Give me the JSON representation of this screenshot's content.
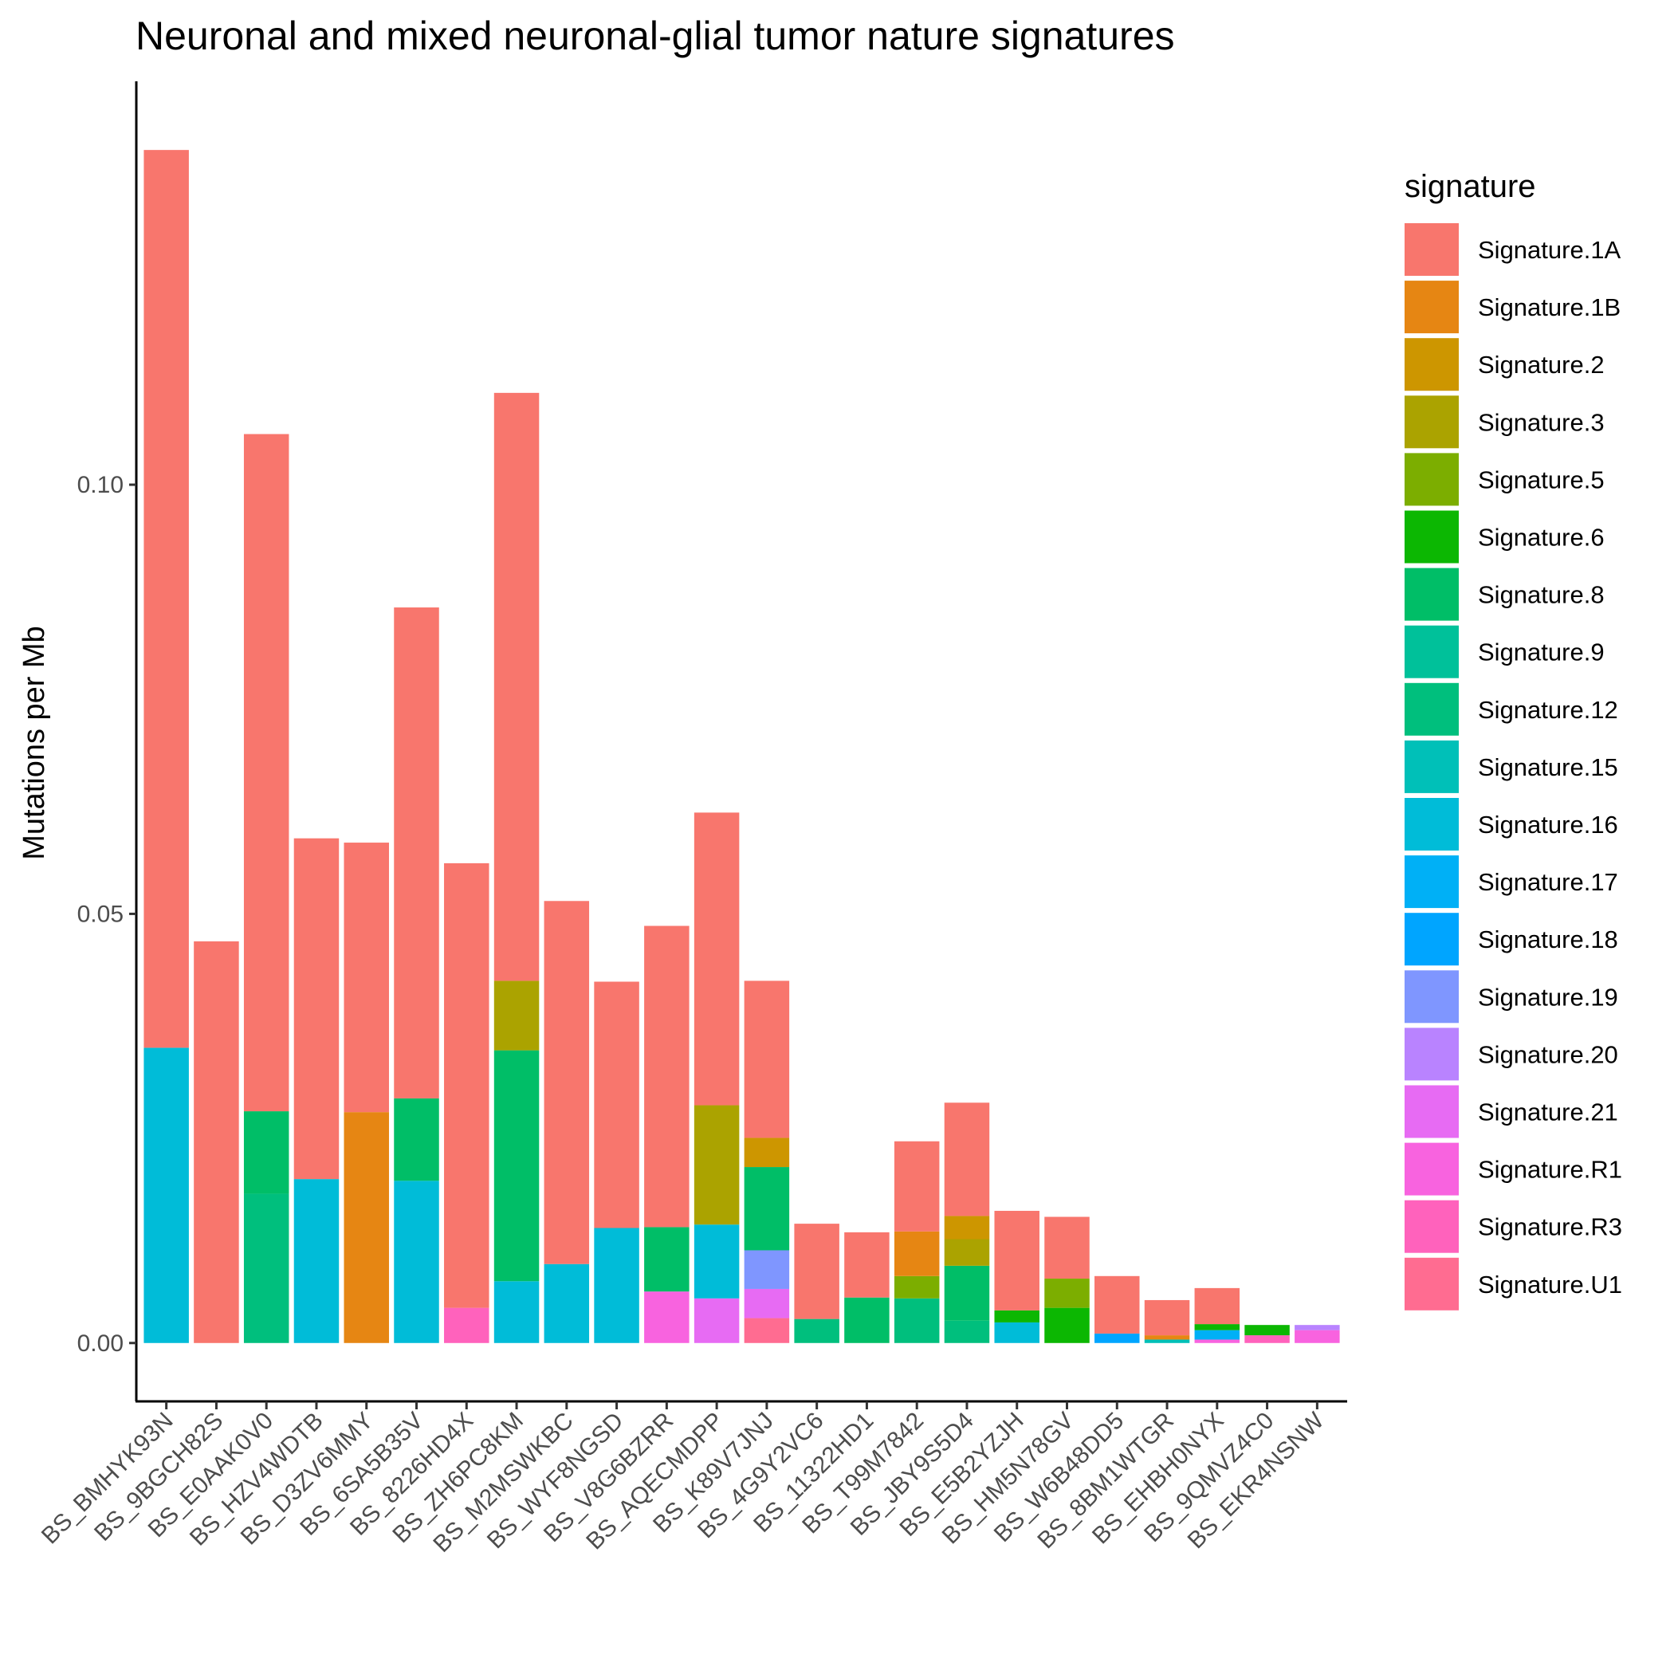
{
  "chart_data": {
    "type": "bar",
    "stacked": true,
    "title": "Neuronal and mixed neuronal-glial tumor nature signatures",
    "xlabel": "",
    "ylabel": "Mutations per Mb",
    "ylim": [
      -0.0068,
      0.147
    ],
    "yticks": [
      0.0,
      0.05,
      0.1
    ],
    "ytick_labels": [
      "0.00",
      "0.05",
      "0.10"
    ],
    "grid": false,
    "legend": {
      "title": "signature",
      "position": "right"
    },
    "categories": [
      "BS_BMHYK93N",
      "BS_9BGCH82S",
      "BS_E0AAK0V0",
      "BS_HZV4WDTB",
      "BS_D3ZV6MMY",
      "BS_6SA5B35V",
      "BS_8226HD4X",
      "BS_ZH6PC8KM",
      "BS_M2MSWKBC",
      "BS_WYF8NGSD",
      "BS_V8G6BZRR",
      "BS_AQECMDPP",
      "BS_K89V7JNJ",
      "BS_4G9Y2VC6",
      "BS_11322HD1",
      "BS_T99M7842",
      "BS_JBY9S5D4",
      "BS_E5B2YZJH",
      "BS_HM5N78GV",
      "BS_W6B48DD5",
      "BS_8BM1WTGR",
      "BS_EHBH0NYX",
      "BS_9QMVZ4C0",
      "BS_EKR4NSNW"
    ],
    "series": [
      {
        "name": "Signature.1A",
        "color": "#F8766D",
        "values": [
          0.1046,
          0.0468,
          0.0789,
          0.0397,
          0.0314,
          0.0572,
          0.0518,
          0.0685,
          0.0423,
          0.0287,
          0.0351,
          0.0341,
          0.0183,
          0.0111,
          0.0076,
          0.0105,
          0.0132,
          0.0116,
          0.0072,
          0.0067,
          0.0041,
          0.0042,
          0.0,
          0.0
        ]
      },
      {
        "name": "Signature.1B",
        "color": "#E68613",
        "values": [
          0,
          0,
          0,
          0,
          0.0269,
          0,
          0,
          0,
          0,
          0,
          0,
          0,
          0,
          0,
          0,
          0.0052,
          0,
          0,
          0,
          0,
          0.0005,
          0,
          0,
          0
        ]
      },
      {
        "name": "Signature.2",
        "color": "#CD9600",
        "values": [
          0,
          0,
          0,
          0,
          0,
          0,
          0,
          0,
          0,
          0,
          0,
          0,
          0.0034,
          0,
          0,
          0,
          0.0027,
          0,
          0,
          0,
          0,
          0,
          0,
          0
        ]
      },
      {
        "name": "Signature.3",
        "color": "#ABA300",
        "values": [
          0,
          0,
          0,
          0,
          0,
          0,
          0,
          0.0081,
          0,
          0,
          0,
          0.0139,
          0,
          0,
          0,
          0,
          0.0031,
          0,
          0,
          0,
          0,
          0,
          0,
          0
        ]
      },
      {
        "name": "Signature.5",
        "color": "#7CAE00",
        "values": [
          0,
          0,
          0,
          0,
          0,
          0,
          0,
          0,
          0,
          0,
          0,
          0,
          0,
          0,
          0,
          0.0026,
          0,
          0,
          0.0034,
          0,
          0,
          0,
          0,
          0
        ]
      },
      {
        "name": "Signature.6",
        "color": "#0CB702",
        "values": [
          0,
          0,
          0,
          0,
          0,
          0,
          0,
          0,
          0,
          0,
          0,
          0,
          0,
          0,
          0,
          0,
          0,
          0.0014,
          0.0041,
          0,
          0,
          0.0007,
          0.0012,
          0
        ]
      },
      {
        "name": "Signature.8",
        "color": "#00BE67",
        "values": [
          0,
          0,
          0.0096,
          0,
          0,
          0.0096,
          0,
          0.0269,
          0,
          0,
          0.0075,
          0,
          0.0097,
          0,
          0.0053,
          0,
          0.0064,
          0,
          0,
          0,
          0,
          0,
          0,
          0
        ]
      },
      {
        "name": "Signature.9",
        "color": "#00C19A",
        "values": [
          0,
          0,
          0,
          0,
          0,
          0,
          0,
          0,
          0,
          0,
          0,
          0,
          0,
          0,
          0,
          0,
          0,
          0,
          0,
          0,
          0,
          0,
          0,
          0
        ]
      },
      {
        "name": "Signature.12",
        "color": "#00BF7D",
        "values": [
          0,
          0,
          0.0174,
          0,
          0,
          0,
          0,
          0,
          0,
          0,
          0,
          0,
          0,
          0.0028,
          0,
          0.0052,
          0.0026,
          0,
          0,
          0,
          0,
          0,
          0,
          0
        ]
      },
      {
        "name": "Signature.15",
        "color": "#00C0B8",
        "values": [
          0,
          0,
          0,
          0,
          0,
          0,
          0,
          0,
          0,
          0,
          0,
          0,
          0,
          0,
          0,
          0,
          0,
          0,
          0,
          0,
          0.0004,
          0,
          0,
          0
        ]
      },
      {
        "name": "Signature.16",
        "color": "#00BCD8",
        "values": [
          0.0344,
          0,
          0,
          0.0191,
          0,
          0.0189,
          0,
          0.0072,
          0.0092,
          0.0134,
          0,
          0.0086,
          0,
          0,
          0,
          0,
          0,
          0.0024,
          0,
          0,
          0,
          0,
          0,
          0
        ]
      },
      {
        "name": "Signature.17",
        "color": "#00B0F6",
        "values": [
          0,
          0,
          0,
          0,
          0,
          0,
          0,
          0,
          0,
          0,
          0,
          0,
          0,
          0,
          0,
          0,
          0,
          0,
          0,
          0,
          0,
          0.0011,
          0,
          0
        ]
      },
      {
        "name": "Signature.18",
        "color": "#00A5FF",
        "values": [
          0,
          0,
          0,
          0,
          0,
          0,
          0,
          0,
          0,
          0,
          0,
          0,
          0,
          0,
          0,
          0,
          0,
          0,
          0,
          0.0011,
          0,
          0,
          0,
          0
        ]
      },
      {
        "name": "Signature.19",
        "color": "#7F96FF",
        "values": [
          0,
          0,
          0,
          0,
          0,
          0,
          0,
          0,
          0,
          0,
          0,
          0,
          0.0045,
          0,
          0,
          0,
          0,
          0,
          0,
          0,
          0,
          0,
          0,
          0
        ]
      },
      {
        "name": "Signature.20",
        "color": "#B983FF",
        "values": [
          0,
          0,
          0,
          0,
          0,
          0,
          0,
          0,
          0,
          0,
          0,
          0,
          0,
          0,
          0,
          0,
          0,
          0,
          0,
          0,
          0,
          0,
          0,
          0.0006
        ]
      },
      {
        "name": "Signature.21",
        "color": "#E76BF3",
        "values": [
          0,
          0,
          0,
          0,
          0,
          0,
          0,
          0,
          0,
          0,
          0,
          0.0052,
          0.0034,
          0,
          0,
          0,
          0,
          0,
          0,
          0,
          0,
          0,
          0,
          0
        ]
      },
      {
        "name": "Signature.R1",
        "color": "#F863DF",
        "values": [
          0,
          0,
          0,
          0,
          0,
          0,
          0,
          0,
          0,
          0,
          0.006,
          0,
          0,
          0,
          0,
          0,
          0,
          0,
          0,
          0,
          0,
          0.0004,
          0,
          0.0015
        ]
      },
      {
        "name": "Signature.R3",
        "color": "#FF62BC",
        "values": [
          0,
          0,
          0,
          0,
          0,
          0,
          0.0041,
          0,
          0,
          0,
          0,
          0,
          0,
          0,
          0,
          0,
          0,
          0,
          0,
          0,
          0,
          0,
          0.0009,
          0
        ]
      },
      {
        "name": "Signature.U1",
        "color": "#FF6C91",
        "values": [
          0,
          0,
          0,
          0,
          0,
          0,
          0,
          0,
          0,
          0,
          0,
          0,
          0.0029,
          0,
          0,
          0,
          0,
          0,
          0,
          0,
          0,
          0,
          0,
          0
        ]
      }
    ]
  }
}
